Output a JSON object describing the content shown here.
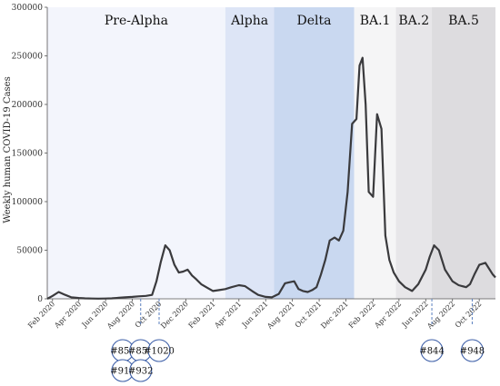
{
  "chart_data": {
    "type": "line",
    "ylabel": "Weekly human COVID-19 Cases",
    "xlabel": "",
    "ylim": [
      0,
      300000
    ],
    "yticks": [
      0,
      50000,
      100000,
      150000,
      200000,
      250000,
      300000
    ],
    "xlim": [
      "2020-01-20",
      "2022-11-07"
    ],
    "xtick_labels": [
      {
        "date": "2020-02-01",
        "label": "Feb 2020"
      },
      {
        "date": "2020-04-01",
        "label": "Apr 2020"
      },
      {
        "date": "2020-06-01",
        "label": "Jun 2020"
      },
      {
        "date": "2020-08-01",
        "label": "Aug 2020"
      },
      {
        "date": "2020-10-01",
        "label": "Oct 2020"
      },
      {
        "date": "2020-12-01",
        "label": "Dec 2020"
      },
      {
        "date": "2021-02-01",
        "label": "Feb 2021"
      },
      {
        "date": "2021-04-01",
        "label": "Apr 2021"
      },
      {
        "date": "2021-06-01",
        "label": "Jun 2021"
      },
      {
        "date": "2021-08-01",
        "label": "Aug 2021"
      },
      {
        "date": "2021-10-01",
        "label": "Oct 2021"
      },
      {
        "date": "2021-12-01",
        "label": "Dec 2021"
      },
      {
        "date": "2022-02-01",
        "label": "Feb 2022"
      },
      {
        "date": "2022-04-01",
        "label": "Apr 2022"
      },
      {
        "date": "2022-06-01",
        "label": "Jun 2022"
      },
      {
        "date": "2022-08-01",
        "label": "Aug 2022"
      },
      {
        "date": "2022-10-01",
        "label": "Oct 2022"
      }
    ],
    "bands": [
      {
        "label": "Pre-Alpha",
        "start": "2020-01-20",
        "end": "2021-03-01",
        "color": "#f3f5fc"
      },
      {
        "label": "Alpha",
        "start": "2021-03-01",
        "end": "2021-06-20",
        "color": "#dde5f6"
      },
      {
        "label": "Delta",
        "start": "2021-06-20",
        "end": "2021-12-20",
        "color": "#c9d8f0"
      },
      {
        "label": "BA.1",
        "start": "2021-12-20",
        "end": "2022-03-25",
        "color": "#f5f5f6"
      },
      {
        "label": "BA.2",
        "start": "2022-03-25",
        "end": "2022-06-15",
        "color": "#e7e6e9"
      },
      {
        "label": "BA.5",
        "start": "2022-06-15",
        "end": "2022-11-07",
        "color": "#dddcdf"
      }
    ],
    "series": [
      {
        "name": "",
        "color": "#3a3a3d",
        "x": [
          "2020-01-20",
          "2020-02-01",
          "2020-02-15",
          "2020-03-01",
          "2020-03-15",
          "2020-04-01",
          "2020-04-15",
          "2020-05-01",
          "2020-05-15",
          "2020-06-01",
          "2020-06-15",
          "2020-07-01",
          "2020-07-15",
          "2020-08-01",
          "2020-08-15",
          "2020-09-01",
          "2020-09-15",
          "2020-09-25",
          "2020-10-05",
          "2020-10-15",
          "2020-10-25",
          "2020-11-05",
          "2020-11-15",
          "2020-11-25",
          "2020-12-05",
          "2020-12-15",
          "2020-12-25",
          "2021-01-05",
          "2021-01-20",
          "2021-02-01",
          "2021-02-15",
          "2021-03-01",
          "2021-03-15",
          "2021-04-01",
          "2021-04-15",
          "2021-05-01",
          "2021-05-15",
          "2021-06-01",
          "2021-06-15",
          "2021-07-01",
          "2021-07-15",
          "2021-07-25",
          "2021-08-05",
          "2021-08-15",
          "2021-08-25",
          "2021-09-05",
          "2021-09-15",
          "2021-09-25",
          "2021-10-05",
          "2021-10-15",
          "2021-10-25",
          "2021-11-05",
          "2021-11-15",
          "2021-11-25",
          "2021-12-05",
          "2021-12-15",
          "2021-12-25",
          "2022-01-01",
          "2022-01-08",
          "2022-01-15",
          "2022-01-22",
          "2022-02-01",
          "2022-02-10",
          "2022-02-20",
          "2022-03-01",
          "2022-03-10",
          "2022-03-20",
          "2022-04-01",
          "2022-04-15",
          "2022-05-01",
          "2022-05-15",
          "2022-06-01",
          "2022-06-10",
          "2022-06-20",
          "2022-07-01",
          "2022-07-15",
          "2022-08-01",
          "2022-08-15",
          "2022-09-01",
          "2022-09-10",
          "2022-09-20",
          "2022-10-01",
          "2022-10-15",
          "2022-11-01",
          "2022-11-07"
        ],
        "y": [
          0,
          3000,
          7000,
          4000,
          1500,
          800,
          500,
          300,
          200,
          300,
          500,
          1000,
          1500,
          2000,
          2500,
          3000,
          4000,
          18000,
          38000,
          55000,
          50000,
          35000,
          27000,
          28000,
          30000,
          24000,
          20000,
          15000,
          11000,
          8000,
          9000,
          10000,
          12000,
          14000,
          13000,
          8000,
          4000,
          2000,
          1500,
          5000,
          16000,
          17000,
          18000,
          10000,
          8000,
          7000,
          9000,
          12000,
          25000,
          40000,
          60000,
          63000,
          60000,
          70000,
          110000,
          180000,
          185000,
          240000,
          248000,
          200000,
          110000,
          105000,
          190000,
          175000,
          65000,
          40000,
          27000,
          18000,
          12000,
          8000,
          15000,
          30000,
          43000,
          55000,
          50000,
          30000,
          18000,
          14000,
          12000,
          15000,
          25000,
          35000,
          37000,
          25000,
          22000
        ]
      }
    ],
    "markers": [
      {
        "label": "#850",
        "date": "2020-07-10",
        "row": 0
      },
      {
        "label": "#859",
        "date": "2020-08-20",
        "row": 0
      },
      {
        "label": "#1020",
        "date": "2020-10-01",
        "row": 0
      },
      {
        "label": "#912",
        "date": "2020-07-10",
        "row": 1
      },
      {
        "label": "#932",
        "date": "2020-08-20",
        "row": 1
      },
      {
        "label": "#844",
        "date": "2022-06-15",
        "row": 0
      },
      {
        "label": "#948",
        "date": "2022-09-15",
        "row": 0
      }
    ],
    "marker_lines": [
      "2020-08-20",
      "2020-10-01",
      "2022-06-15",
      "2022-09-15"
    ],
    "grid": false,
    "legend": "none"
  }
}
